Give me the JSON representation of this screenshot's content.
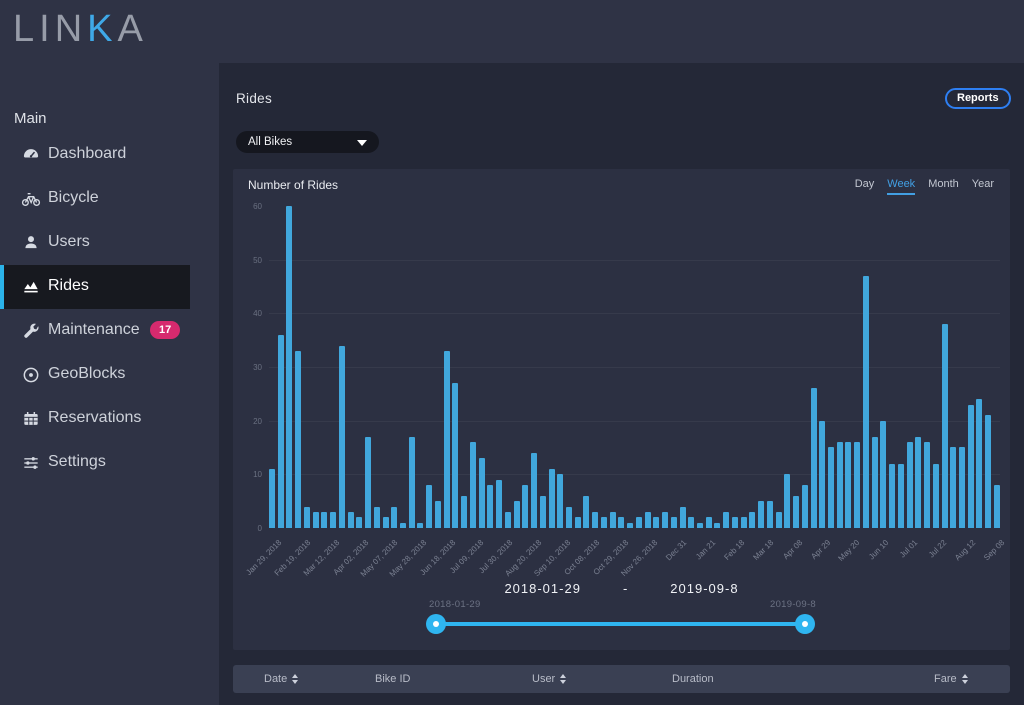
{
  "app": {
    "logo_prefix": "LIN",
    "logo_accent": "K",
    "logo_suffix": "A"
  },
  "colors": {
    "accent_cyan": "#2fb5f0",
    "bar_blue": "#41a7dc",
    "badge_pink": "#d62a6e",
    "active_tab_blue": "#429fe3",
    "reports_border_blue": "#2e7ff2"
  },
  "sidebar": {
    "section_label": "Main",
    "items": [
      {
        "label": "Dashboard",
        "icon": "dashboard-icon",
        "active": false
      },
      {
        "label": "Bicycle",
        "icon": "bicycle-icon",
        "active": false
      },
      {
        "label": "Users",
        "icon": "user-icon",
        "active": false
      },
      {
        "label": "Rides",
        "icon": "rides-chart-icon",
        "active": true
      },
      {
        "label": "Maintenance",
        "icon": "wrench-icon",
        "active": false,
        "badge": "17"
      },
      {
        "label": "GeoBlocks",
        "icon": "geoblock-icon",
        "active": false
      },
      {
        "label": "Reservations",
        "icon": "calendar-icon",
        "active": false
      },
      {
        "label": "Settings",
        "icon": "sliders-icon",
        "active": false
      }
    ]
  },
  "header": {
    "title": "Rides",
    "reports_button": "Reports"
  },
  "filters": {
    "bike_select_value": "All Bikes"
  },
  "chart_panel": {
    "title": "Number of Rides",
    "range_tabs": [
      "Day",
      "Week",
      "Month",
      "Year"
    ],
    "active_tab": "Week"
  },
  "chart_data": {
    "type": "bar",
    "title": "Number of Rides",
    "xlabel": "",
    "ylabel": "",
    "ylim": [
      0,
      60
    ],
    "yticks": [
      0,
      10,
      20,
      30,
      40,
      50,
      60
    ],
    "grid": true,
    "legend": false,
    "bar_color": "#41a7dc",
    "x_tick_labels": [
      "Jan 29, 2018",
      "Feb 19, 2018",
      "Mar 12, 2018",
      "Apr 02, 2018",
      "May 07, 2018",
      "May 28, 2018",
      "Jun 18, 2018",
      "Jul 09, 2018",
      "Jul 30, 2018",
      "Aug 20, 2018",
      "Sep 10, 2018",
      "Oct 08, 2018",
      "Oct 29, 2018",
      "Nov 26, 2018",
      "Dec 31",
      "Jan 21",
      "Feb 18",
      "Mar 18",
      "Apr 08",
      "Apr 29",
      "May 20",
      "Jun 10",
      "Jul 01",
      "Jul 22",
      "Aug 12",
      "Sep 08"
    ],
    "values": [
      11,
      36,
      60,
      33,
      4,
      3,
      3,
      3,
      34,
      3,
      2,
      17,
      4,
      2,
      4,
      1,
      17,
      1,
      8,
      5,
      33,
      27,
      6,
      16,
      13,
      8,
      9,
      3,
      5,
      8,
      14,
      6,
      11,
      10,
      4,
      2,
      6,
      3,
      2,
      3,
      2,
      1,
      2,
      3,
      2,
      3,
      2,
      4,
      2,
      1,
      2,
      1,
      3,
      2,
      2,
      3,
      5,
      5,
      3,
      10,
      6,
      8,
      26,
      20,
      15,
      16,
      16,
      16,
      47,
      17,
      20,
      12,
      12,
      16,
      17,
      16,
      12,
      38,
      15,
      15,
      23,
      24,
      21,
      8
    ]
  },
  "range_display": {
    "start": "2018-01-29",
    "separator": "-",
    "end": "2019-09-8"
  },
  "slider": {
    "start_label": "2018-01-29",
    "end_label": "2019-09-8"
  },
  "table": {
    "columns": [
      {
        "label": "Date",
        "sortable": true
      },
      {
        "label": "Bike ID",
        "sortable": false
      },
      {
        "label": "User",
        "sortable": true
      },
      {
        "label": "Duration",
        "sortable": false
      },
      {
        "label": "Fare",
        "sortable": true
      }
    ]
  }
}
